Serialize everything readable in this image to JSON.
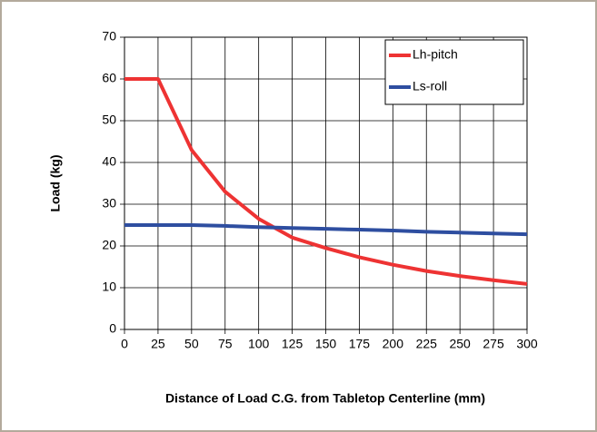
{
  "chart_data": {
    "type": "line",
    "xlabel": "Distance of Load C.G. from Tabletop Centerline (mm)",
    "ylabel": "Load (kg)",
    "x": [
      0,
      25,
      50,
      75,
      100,
      125,
      150,
      175,
      200,
      225,
      250,
      275,
      300
    ],
    "series": [
      {
        "name": "Lh-pitch",
        "color": "#ee3333",
        "values": [
          60,
          60,
          43,
          33,
          26.5,
          22,
          19.5,
          17.3,
          15.5,
          14,
          12.8,
          11.8,
          10.9
        ]
      },
      {
        "name": "Ls-roll",
        "color": "#2e4ea0",
        "values": [
          25,
          25,
          25,
          24.8,
          24.5,
          24.3,
          24.1,
          23.9,
          23.7,
          23.4,
          23.2,
          23,
          22.8
        ]
      }
    ],
    "xlim": [
      0,
      300
    ],
    "xticks": [
      0,
      25,
      50,
      75,
      100,
      125,
      150,
      175,
      200,
      225,
      250,
      275,
      300
    ],
    "ylim": [
      0,
      70
    ],
    "yticks": [
      0,
      10,
      20,
      30,
      40,
      50,
      60,
      70
    ],
    "grid": true,
    "legend": "upper right"
  }
}
